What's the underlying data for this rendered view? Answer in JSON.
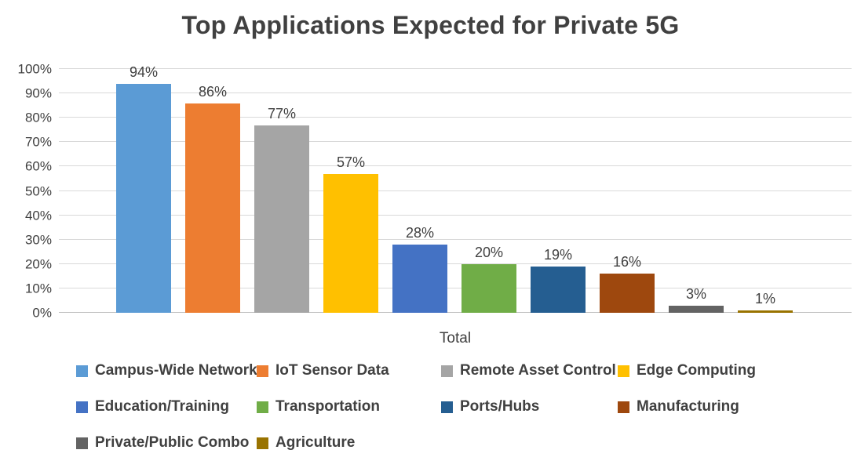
{
  "chart_data": {
    "type": "bar",
    "title": "Top Applications Expected for Private 5G",
    "xlabel": "Total",
    "ylabel": "",
    "ylim": [
      0,
      100
    ],
    "grid": true,
    "legend_position": "bottom",
    "y_ticks": [
      "0%",
      "10%",
      "20%",
      "30%",
      "40%",
      "50%",
      "60%",
      "70%",
      "80%",
      "90%",
      "100%"
    ],
    "categories": [
      "Campus-Wide Network",
      "IoT Sensor Data",
      "Remote Asset Control",
      "Edge Computing",
      "Education/Training",
      "Transportation",
      "Ports/Hubs",
      "Manufacturing",
      "Private/Public Combo",
      "Agriculture"
    ],
    "values": [
      94,
      86,
      77,
      57,
      28,
      20,
      19,
      16,
      3,
      1
    ],
    "labels": [
      "94%",
      "86%",
      "77%",
      "57%",
      "28%",
      "20%",
      "19%",
      "16%",
      "3%",
      "1%"
    ],
    "colors": [
      "#5B9BD5",
      "#ED7D31",
      "#A5A5A5",
      "#FFC000",
      "#4472C4",
      "#70AD47",
      "#255E91",
      "#9E480E",
      "#636363",
      "#997300"
    ]
  }
}
